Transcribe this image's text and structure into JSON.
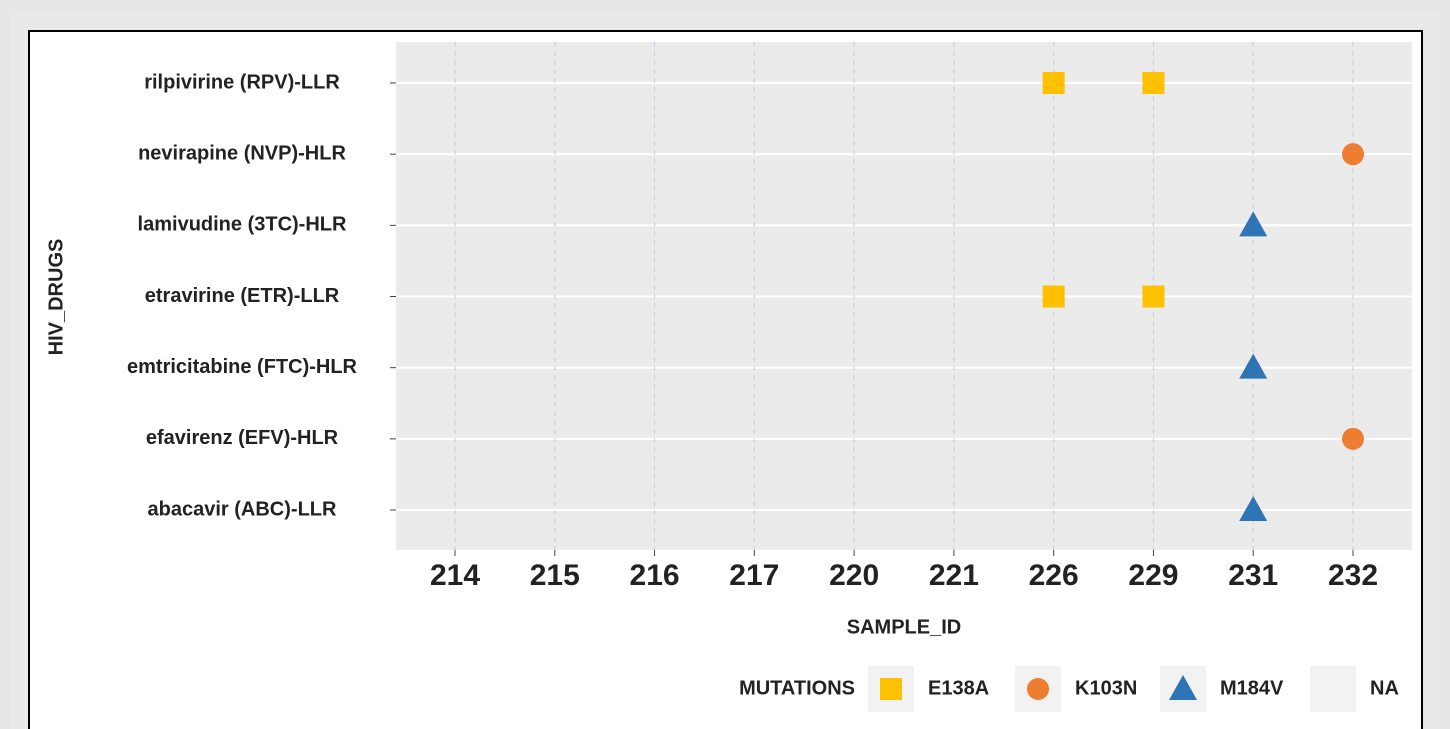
{
  "chart_data": {
    "type": "scatter",
    "x_label": "SAMPLE_ID",
    "y_label": "HIV_DRUGS",
    "x_categories": [
      "214",
      "215",
      "216",
      "217",
      "220",
      "221",
      "226",
      "229",
      "231",
      "232"
    ],
    "y_categories": [
      "rilpivirine (RPV)-LLR",
      "nevirapine (NVP)-HLR",
      "lamivudine (3TC)-HLR",
      "etravirine (ETR)-LLR",
      "emtricitabine (FTC)-HLR",
      "efavirenz (EFV)-HLR",
      "abacavir (ABC)-LLR"
    ],
    "legend_title": "MUTATIONS",
    "legend": "bottom",
    "grid": true,
    "series": [
      {
        "name": "E138A",
        "color": "#FFC000",
        "shape": "square",
        "x": [
          "226",
          "229",
          "226",
          "229"
        ],
        "y": [
          "rilpivirine (RPV)-LLR",
          "rilpivirine (RPV)-LLR",
          "etravirine (ETR)-LLR",
          "etravirine (ETR)-LLR"
        ]
      },
      {
        "name": "K103N",
        "color": "#ED7D31",
        "shape": "circle",
        "x": [
          "232",
          "232"
        ],
        "y": [
          "nevirapine (NVP)-HLR",
          "efavirenz (EFV)-HLR"
        ]
      },
      {
        "name": "M184V",
        "color": "#2E75B6",
        "shape": "triangle",
        "x": [
          "231",
          "231",
          "231"
        ],
        "y": [
          "lamivudine (3TC)-HLR",
          "emtricitabine (FTC)-HLR",
          "abacavir (ABC)-LLR"
        ]
      },
      {
        "name": "NA",
        "color": null,
        "shape": null,
        "x": [],
        "y": []
      }
    ]
  }
}
